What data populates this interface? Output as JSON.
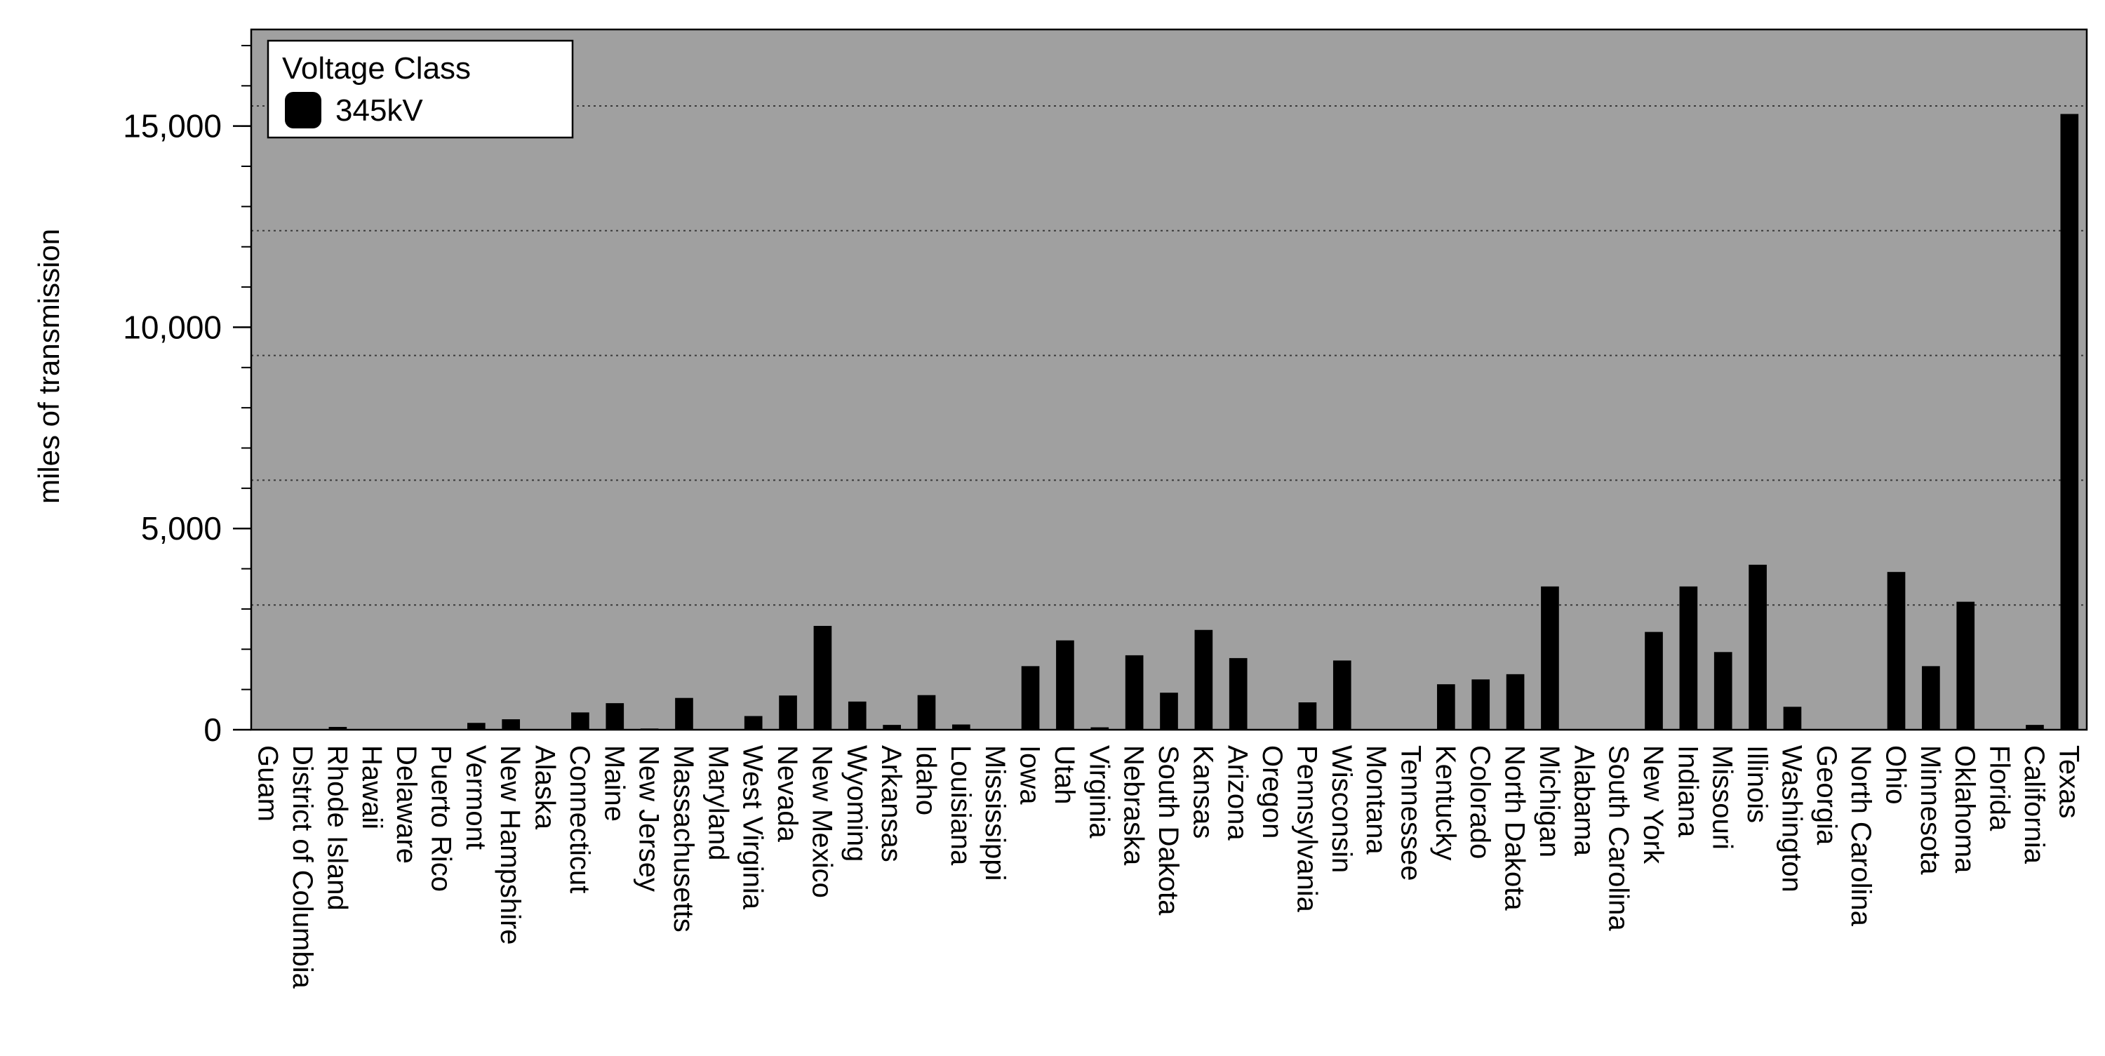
{
  "chart_data": {
    "type": "bar",
    "title": "",
    "xlabel": "",
    "ylabel": "miles of transmission",
    "ylim": [
      0,
      17400
    ],
    "yticks": [
      0,
      5000,
      10000,
      15000
    ],
    "ytick_labels": [
      "0",
      "5,000",
      "10,000",
      "15,000"
    ],
    "minor_tick_step": 1000,
    "gridlines": [
      3100,
      6200,
      9300,
      12400,
      15500
    ],
    "background_color": "#a0a0a0",
    "bar_color": "#000000",
    "legend": {
      "title": "Voltage Class",
      "position": "top-left"
    },
    "categories": [
      "Guam",
      "District of Columbia",
      "Rhode Island",
      "Hawaii",
      "Delaware",
      "Puerto Rico",
      "Vermont",
      "New Hampshire",
      "Alaska",
      "Connecticut",
      "Maine",
      "New Jersey",
      "Massachusetts",
      "Maryland",
      "West Virginia",
      "Nevada",
      "New Mexico",
      "Wyoming",
      "Arkansas",
      "Idaho",
      "Louisiana",
      "Mississippi",
      "Iowa",
      "Utah",
      "Virginia",
      "Nebraska",
      "South Dakota",
      "Kansas",
      "Arizona",
      "Oregon",
      "Pennsylvania",
      "Wisconsin",
      "Montana",
      "Tennessee",
      "Kentucky",
      "Colorado",
      "North Dakota",
      "Michigan",
      "Alabama",
      "South Carolina",
      "New York",
      "Indiana",
      "Missouri",
      "Illinois",
      "Washington",
      "Georgia",
      "North Carolina",
      "Ohio",
      "Minnesota",
      "Oklahoma",
      "Florida",
      "California",
      "Texas"
    ],
    "series": [
      {
        "name": "345kV",
        "values": [
          0,
          0,
          70,
          0,
          0,
          0,
          170,
          260,
          0,
          430,
          660,
          30,
          790,
          0,
          340,
          850,
          2580,
          700,
          120,
          860,
          130,
          0,
          1580,
          2220,
          60,
          1850,
          920,
          2480,
          1780,
          0,
          680,
          1720,
          0,
          0,
          1130,
          1250,
          1380,
          3560,
          0,
          0,
          2430,
          3560,
          1930,
          4100,
          570,
          0,
          0,
          3920,
          1580,
          3180,
          0,
          120,
          15300
        ]
      }
    ]
  }
}
